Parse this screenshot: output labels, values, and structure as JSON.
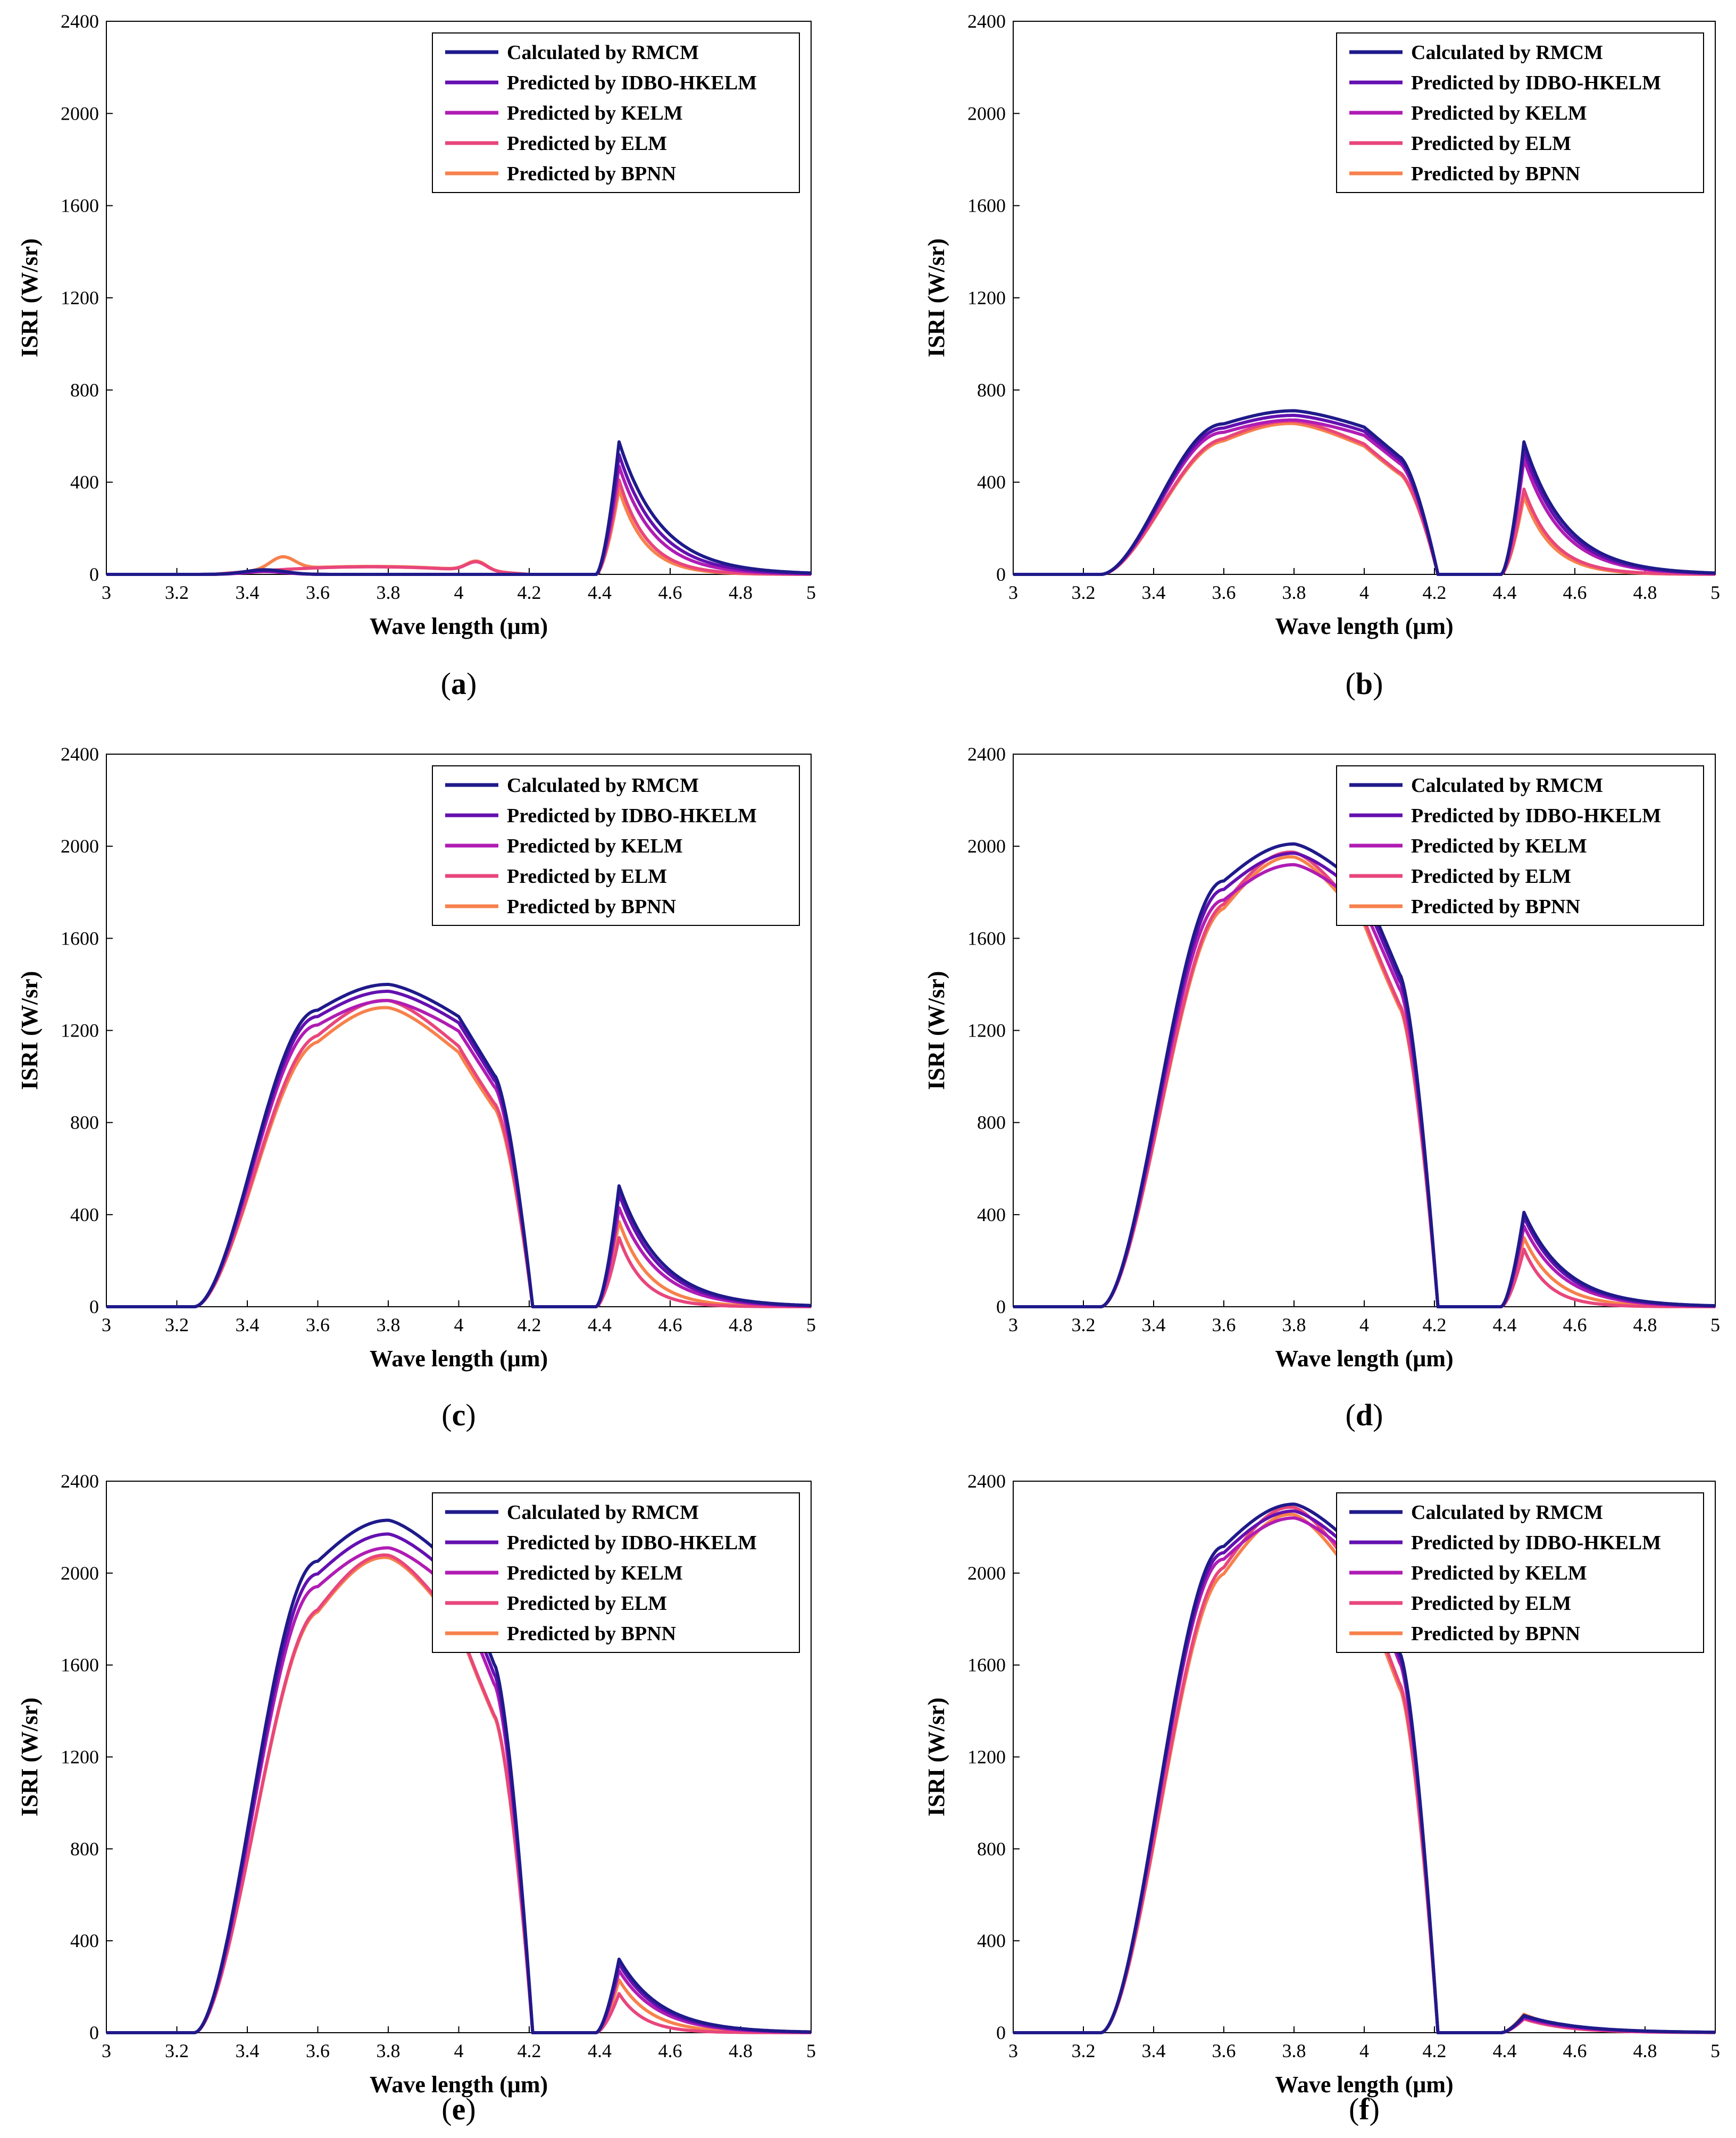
{
  "legend": [
    {
      "label": "Calculated by RMCM",
      "color": "#1f1a8a"
    },
    {
      "label": "Predicted by IDBO-HKELM",
      "color": "#6410b0"
    },
    {
      "label": "Predicted by KELM",
      "color": "#b01cb4"
    },
    {
      "label": "Predicted by ELM",
      "color": "#e8467c"
    },
    {
      "label": "Predicted by BPNN",
      "color": "#f7814c"
    }
  ],
  "chart_data": [
    {
      "type": "line",
      "caption": "(a)",
      "caption_letter": "a",
      "xlabel": "Wave length (μm)",
      "ylabel": "ISRI (W/sr)",
      "xlim": [
        3,
        5
      ],
      "ylim": [
        0,
        2400
      ],
      "xticks": [
        "3",
        "3.2",
        "3.4",
        "3.6",
        "3.8",
        "4",
        "4.2",
        "4.4",
        "4.6",
        "4.8",
        "5"
      ],
      "yticks": [
        "0",
        "400",
        "800",
        "1200",
        "1600",
        "2000",
        "2400"
      ],
      "legend_position": "top-right",
      "grid": false,
      "band1": {
        "peak": [
          20,
          16,
          12,
          85,
          90
        ],
        "shape": [
          "rmcm",
          "rmcm",
          "rmcm",
          "ripple",
          "ripple"
        ]
      },
      "band2": {
        "peak": [
          575,
          520,
          470,
          410,
          370
        ],
        "decay": [
          0.12,
          0.11,
          0.1,
          0.08,
          0.075
        ]
      }
    },
    {
      "type": "line",
      "caption": "(b)",
      "caption_letter": "b",
      "xlabel": "Wave length (μm)",
      "ylabel": "ISRI (W/sr)",
      "xlim": [
        3,
        5
      ],
      "ylim": [
        0,
        2400
      ],
      "xticks": [
        "3",
        "3.2",
        "3.4",
        "3.6",
        "3.8",
        "4",
        "4.2",
        "4.4",
        "4.6",
        "4.8",
        "5"
      ],
      "yticks": [
        "0",
        "400",
        "800",
        "1200",
        "1600",
        "2000",
        "2400"
      ],
      "legend_position": "top-right",
      "grid": false,
      "band1": {
        "peak": [
          710,
          690,
          670,
          640,
          630
        ],
        "shape": [
          "rmcm",
          "rmcm",
          "rmcm",
          "pred",
          "pred"
        ]
      },
      "band2": {
        "peak": [
          575,
          540,
          500,
          370,
          340
        ],
        "decay": [
          0.12,
          0.115,
          0.11,
          0.085,
          0.08
        ]
      }
    },
    {
      "type": "line",
      "caption": "(c)",
      "caption_letter": "c",
      "xlabel": "Wave length (μm)",
      "ylabel": "ISRI (W/sr)",
      "xlim": [
        3,
        5
      ],
      "ylim": [
        0,
        2400
      ],
      "xticks": [
        "3",
        "3.2",
        "3.4",
        "3.6",
        "3.8",
        "4",
        "4.2",
        "4.4",
        "4.6",
        "4.8",
        "5"
      ],
      "yticks": [
        "0",
        "400",
        "800",
        "1200",
        "1600",
        "2000",
        "2400"
      ],
      "legend_position": "top-right",
      "grid": false,
      "band1": {
        "peak": [
          1400,
          1370,
          1330,
          1280,
          1250
        ],
        "shape": [
          "rmcm",
          "rmcm",
          "rmcm",
          "pred",
          "pred"
        ]
      },
      "band2": {
        "peak": [
          525,
          490,
          430,
          300,
          370
        ],
        "decay": [
          0.12,
          0.115,
          0.11,
          0.07,
          0.085
        ]
      }
    },
    {
      "type": "line",
      "caption": "(d)",
      "caption_letter": "d",
      "xlabel": "Wave length (μm)",
      "ylabel": "ISRI (W/sr)",
      "xlim": [
        3,
        5
      ],
      "ylim": [
        0,
        2400
      ],
      "xticks": [
        "3",
        "3.2",
        "3.4",
        "3.6",
        "3.8",
        "4",
        "4.2",
        "4.4",
        "4.6",
        "4.8",
        "5"
      ],
      "yticks": [
        "0",
        "400",
        "800",
        "1200",
        "1600",
        "2000",
        "2400"
      ],
      "legend_position": "top-right",
      "grid": false,
      "band1": {
        "peak": [
          2010,
          1970,
          1920,
          1900,
          1880
        ],
        "shape": [
          "rmcm",
          "rmcm",
          "rmcm",
          "pred",
          "pred"
        ]
      },
      "band2": {
        "peak": [
          410,
          390,
          350,
          250,
          300
        ],
        "decay": [
          0.12,
          0.115,
          0.11,
          0.07,
          0.09
        ]
      }
    },
    {
      "type": "line",
      "caption": "(e)",
      "caption_letter": "e",
      "xlabel": "Wave length (μm)",
      "ylabel": "ISRI (W/sr)",
      "xlim": [
        3,
        5
      ],
      "ylim": [
        0,
        2400
      ],
      "xticks": [
        "3",
        "3.2",
        "3.4",
        "3.6",
        "3.8",
        "4",
        "4.2",
        "4.4",
        "4.6",
        "4.8",
        "5"
      ],
      "yticks": [
        "0",
        "400",
        "800",
        "1200",
        "1600",
        "2000",
        "2400"
      ],
      "legend_position": "top-right",
      "grid": false,
      "band1": {
        "peak": [
          2230,
          2170,
          2110,
          2000,
          1990
        ],
        "shape": [
          "rmcm",
          "rmcm",
          "rmcm",
          "pred",
          "pred"
        ]
      },
      "band2": {
        "peak": [
          320,
          300,
          270,
          170,
          230
        ],
        "decay": [
          0.12,
          0.115,
          0.11,
          0.07,
          0.09
        ]
      }
    },
    {
      "type": "line",
      "caption": "(f)",
      "caption_letter": "f",
      "xlabel": "Wave length (μm)",
      "ylabel": "ISRI (W/sr)",
      "xlim": [
        3,
        5
      ],
      "ylim": [
        0,
        2400
      ],
      "xticks": [
        "3",
        "3.2",
        "3.4",
        "3.6",
        "3.8",
        "4",
        "4.2",
        "4.4",
        "4.6",
        "4.8",
        "5"
      ],
      "yticks": [
        "0",
        "400",
        "800",
        "1200",
        "1600",
        "2000",
        "2400"
      ],
      "legend_position": "top-right",
      "grid": false,
      "band1": {
        "peak": [
          2300,
          2270,
          2240,
          2200,
          2170
        ],
        "shape": [
          "rmcm",
          "rmcm",
          "rmcm",
          "pred",
          "pred"
        ]
      },
      "band2": {
        "peak": [
          75,
          70,
          65,
          60,
          80
        ],
        "decay": [
          0.15,
          0.15,
          0.14,
          0.12,
          0.12
        ]
      }
    }
  ]
}
